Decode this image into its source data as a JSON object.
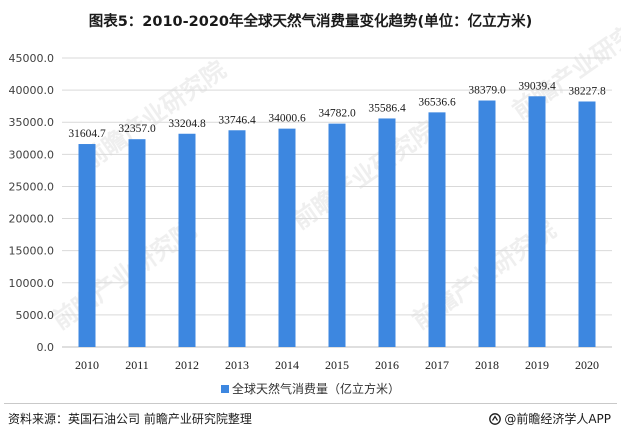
{
  "title": "图表5：2010-2020年全球天然气消费量变化趋势(单位：亿立方米)",
  "source": "资料来源：英国石油公司 前瞻产业研究院整理",
  "brand": "@前瞻经济学人APP",
  "watermark": "前瞻产业研究院",
  "colors": {
    "bar": "#3d87e0",
    "grid": "#d9d9d9",
    "axis": "#bfbfbf"
  },
  "chart_data": {
    "type": "bar",
    "title": "图表5：2010-2020年全球天然气消费量变化趋势(单位：亿立方米)",
    "xlabel": "",
    "ylabel": "",
    "categories": [
      "2010",
      "2011",
      "2012",
      "2013",
      "2014",
      "2015",
      "2016",
      "2017",
      "2018",
      "2019",
      "2020"
    ],
    "series": [
      {
        "name": "全球天然气消费量（亿立方米）",
        "values": [
          31604.7,
          32357.0,
          33204.8,
          33746.4,
          34000.6,
          34782.0,
          35586.4,
          36536.6,
          38379.0,
          39039.4,
          38227.8
        ],
        "data_labels": [
          "31604.7",
          "32357.0",
          "33204.8",
          "33746.4",
          "34000.6",
          "34782.0",
          "35586.4",
          "36536.6",
          "38379.0",
          "39039.4",
          "38227.8"
        ]
      }
    ],
    "ylim": [
      0,
      45000
    ],
    "yticks": [
      "0.0",
      "5000.0",
      "10000.0",
      "15000.0",
      "20000.0",
      "25000.0",
      "30000.0",
      "35000.0",
      "40000.0",
      "45000.0"
    ],
    "ytick_values": [
      0,
      5000,
      10000,
      15000,
      20000,
      25000,
      30000,
      35000,
      40000,
      45000
    ],
    "grid": true,
    "legend_position": "bottom-center"
  }
}
